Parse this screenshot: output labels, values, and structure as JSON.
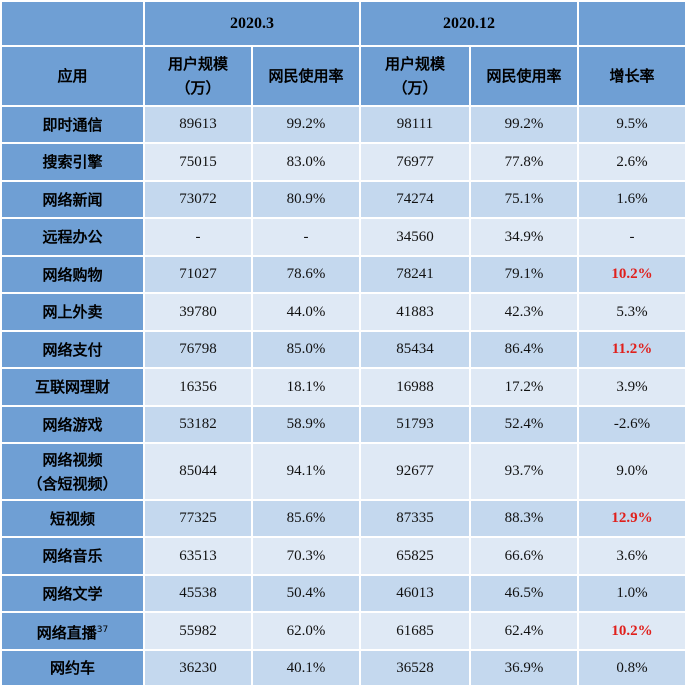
{
  "header": {
    "period1": "2020.3",
    "period2": "2020.12",
    "col_app": "应用",
    "col_users_line1": "用户规模",
    "col_users_line2": "（万）",
    "col_rate": "网民使用率",
    "col_growth": "增长率"
  },
  "rows": [
    {
      "name": "即时通信",
      "u1": "89613",
      "r1": "99.2%",
      "u2": "98111",
      "r2": "99.2%",
      "g": "9.5%",
      "hl": false
    },
    {
      "name": "搜索引擎",
      "u1": "75015",
      "r1": "83.0%",
      "u2": "76977",
      "r2": "77.8%",
      "g": "2.6%",
      "hl": false
    },
    {
      "name": "网络新闻",
      "u1": "73072",
      "r1": "80.9%",
      "u2": "74274",
      "r2": "75.1%",
      "g": "1.6%",
      "hl": false
    },
    {
      "name": "远程办公",
      "u1": "-",
      "r1": "-",
      "u2": "34560",
      "r2": "34.9%",
      "g": "-",
      "hl": false
    },
    {
      "name": "网络购物",
      "u1": "71027",
      "r1": "78.6%",
      "u2": "78241",
      "r2": "79.1%",
      "g": "10.2%",
      "hl": true
    },
    {
      "name": "网上外卖",
      "u1": "39780",
      "r1": "44.0%",
      "u2": "41883",
      "r2": "42.3%",
      "g": "5.3%",
      "hl": false
    },
    {
      "name": "网络支付",
      "u1": "76798",
      "r1": "85.0%",
      "u2": "85434",
      "r2": "86.4%",
      "g": "11.2%",
      "hl": true
    },
    {
      "name": "互联网理财",
      "u1": "16356",
      "r1": "18.1%",
      "u2": "16988",
      "r2": "17.2%",
      "g": "3.9%",
      "hl": false
    },
    {
      "name": "网络游戏",
      "u1": "53182",
      "r1": "58.9%",
      "u2": "51793",
      "r2": "52.4%",
      "g": "-2.6%",
      "hl": false
    },
    {
      "name": "网络视频",
      "name2": "（含短视频）",
      "u1": "85044",
      "r1": "94.1%",
      "u2": "92677",
      "r2": "93.7%",
      "g": "9.0%",
      "hl": false
    },
    {
      "name": "短视频",
      "u1": "77325",
      "r1": "85.6%",
      "u2": "87335",
      "r2": "88.3%",
      "g": "12.9%",
      "hl": true
    },
    {
      "name": "网络音乐",
      "u1": "63513",
      "r1": "70.3%",
      "u2": "65825",
      "r2": "66.6%",
      "g": "3.6%",
      "hl": false
    },
    {
      "name": "网络文学",
      "u1": "45538",
      "r1": "50.4%",
      "u2": "46013",
      "r2": "46.5%",
      "g": "1.0%",
      "hl": false
    },
    {
      "name": "网络直播",
      "sup": "37",
      "u1": "55982",
      "r1": "62.0%",
      "u2": "61685",
      "r2": "62.4%",
      "g": "10.2%",
      "hl": true
    },
    {
      "name": "网约车",
      "u1": "36230",
      "r1": "40.1%",
      "u2": "36528",
      "r2": "36.9%",
      "g": "0.8%",
      "hl": false
    }
  ]
}
